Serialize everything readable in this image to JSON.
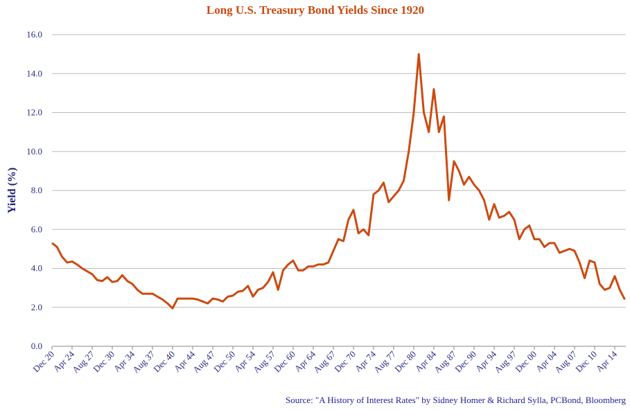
{
  "chart_data": {
    "type": "line",
    "title": "Long U.S. Treasury Bond Yields Since 1920",
    "y_label": "Yield (%)",
    "source": "Source: \"A History of Interest Rates\" by Sidney Homer & Richard Sylla, PCBond, Bloomberg",
    "categories": [
      "Dec 20",
      null,
      null,
      null,
      "Apr 24",
      null,
      null,
      null,
      "Aug 27",
      null,
      null,
      null,
      "Dec 30",
      null,
      null,
      null,
      "Apr 34",
      null,
      null,
      null,
      "Aug 37",
      null,
      null,
      null,
      "Dec 40",
      null,
      null,
      null,
      "Apr 44",
      null,
      null,
      null,
      "Aug 47",
      null,
      null,
      null,
      "Dec 50",
      null,
      null,
      null,
      "Apr 54",
      null,
      null,
      null,
      "Aug 57",
      null,
      null,
      null,
      "Dec 60",
      null,
      null,
      null,
      "Apr 64",
      null,
      null,
      null,
      "Aug 67",
      null,
      null,
      null,
      "Dec 70",
      null,
      null,
      null,
      "Apr 74",
      null,
      null,
      null,
      "Aug 77",
      null,
      null,
      null,
      "Dec 80",
      null,
      null,
      null,
      "Apr 84",
      null,
      null,
      null,
      "Aug 87",
      null,
      null,
      null,
      "Dec 90",
      null,
      null,
      null,
      "Apr 94",
      null,
      null,
      null,
      "Aug 97",
      null,
      null,
      null,
      "Dec 00",
      null,
      null,
      null,
      "Apr 04",
      null,
      null,
      null,
      "Aug 07",
      null,
      null,
      null,
      "Dec 10",
      null,
      null,
      null,
      "Apr 14",
      null,
      null
    ],
    "series": [
      {
        "name": "Yield",
        "color": "#cc4a10",
        "values": [
          5.3,
          5.1,
          4.6,
          4.3,
          4.35,
          4.2,
          4.0,
          3.85,
          3.7,
          3.4,
          3.35,
          3.55,
          3.3,
          3.35,
          3.65,
          3.35,
          3.2,
          2.9,
          2.7,
          2.7,
          2.7,
          2.55,
          2.4,
          2.2,
          1.95,
          2.45,
          2.45,
          2.45,
          2.45,
          2.4,
          2.3,
          2.2,
          2.45,
          2.4,
          2.3,
          2.55,
          2.6,
          2.8,
          2.85,
          3.1,
          2.55,
          2.9,
          3.0,
          3.3,
          3.8,
          2.9,
          3.9,
          4.2,
          4.4,
          3.9,
          3.9,
          4.1,
          4.1,
          4.2,
          4.2,
          4.3,
          4.9,
          5.5,
          5.4,
          6.5,
          7.0,
          5.8,
          6.0,
          5.7,
          7.8,
          8.0,
          8.4,
          7.4,
          7.7,
          8.0,
          8.5,
          10.0,
          12.0,
          15.0,
          12.0,
          11.0,
          13.2,
          11.0,
          11.8,
          7.5,
          9.5,
          9.0,
          8.3,
          8.7,
          8.3,
          8.0,
          7.5,
          6.5,
          7.3,
          6.6,
          6.7,
          6.9,
          6.5,
          5.5,
          6.0,
          6.2,
          5.5,
          5.5,
          5.1,
          5.3,
          5.3,
          4.8,
          4.9,
          5.0,
          4.9,
          4.3,
          3.5,
          4.4,
          4.3,
          3.2,
          2.9,
          3.0,
          3.6,
          2.9,
          2.4
        ]
      }
    ],
    "ylim": [
      0,
      16
    ],
    "yticks": [
      {
        "value": 0,
        "label": "0.0"
      },
      {
        "value": 2,
        "label": "2.0"
      },
      {
        "value": 4,
        "label": "4.0"
      },
      {
        "value": 6,
        "label": "6.0"
      },
      {
        "value": 8,
        "label": "8.0"
      },
      {
        "value": 10,
        "label": "10.0"
      },
      {
        "value": 12,
        "label": "12.0"
      },
      {
        "value": 14,
        "label": "14.0"
      },
      {
        "value": 16,
        "label": "16.0"
      }
    ],
    "grid": true
  }
}
